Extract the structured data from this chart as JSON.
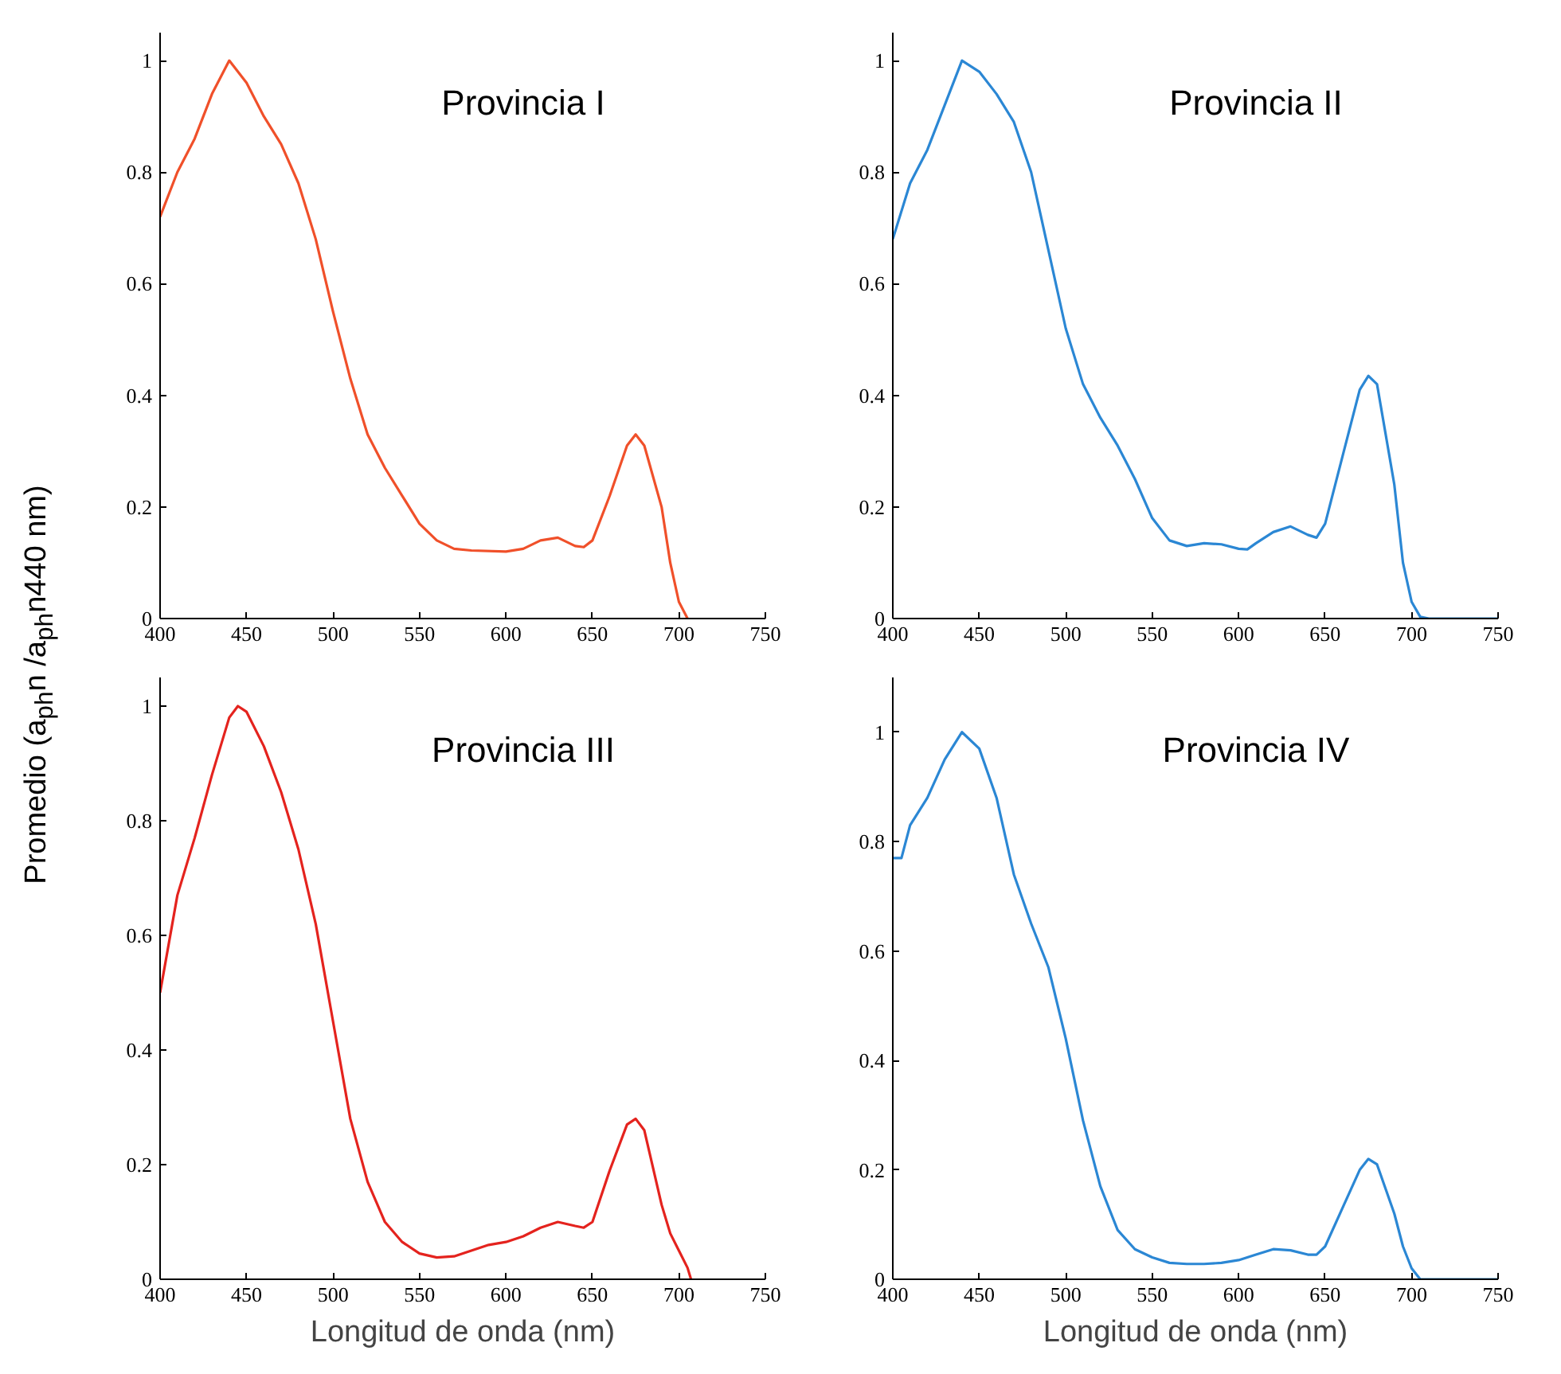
{
  "chart_data": [
    {
      "type": "line",
      "title": "Provincia I",
      "ylabel": "Promedio (a$_{ph}$n /a$_{ph}$n440 nm)",
      "xlim": [
        400,
        750
      ],
      "ylim": [
        0,
        1.05
      ],
      "xticks": [
        400,
        450,
        500,
        550,
        600,
        650,
        700,
        750
      ],
      "yticks": [
        0,
        0.2,
        0.4,
        0.6,
        0.8,
        1
      ],
      "grid": false,
      "marker": "none",
      "line_style": "solid",
      "series": [
        {
          "color": "#f0502a",
          "x": [
            400,
            410,
            420,
            430,
            440,
            450,
            460,
            470,
            480,
            490,
            500,
            510,
            520,
            530,
            540,
            550,
            560,
            570,
            580,
            600,
            610,
            620,
            630,
            640,
            645,
            650,
            660,
            670,
            675,
            680,
            690,
            695,
            700,
            705
          ],
          "values": [
            0.72,
            0.8,
            0.86,
            0.94,
            1.0,
            0.96,
            0.9,
            0.85,
            0.78,
            0.68,
            0.55,
            0.43,
            0.33,
            0.27,
            0.22,
            0.17,
            0.14,
            0.125,
            0.122,
            0.12,
            0.125,
            0.14,
            0.145,
            0.13,
            0.128,
            0.14,
            0.22,
            0.31,
            0.33,
            0.31,
            0.2,
            0.1,
            0.03,
            0
          ]
        }
      ]
    },
    {
      "type": "line",
      "title": "Provincia II",
      "xlim": [
        400,
        750
      ],
      "ylim": [
        0,
        1.05
      ],
      "xticks": [
        400,
        450,
        500,
        550,
        600,
        650,
        700,
        750
      ],
      "yticks": [
        0,
        0.2,
        0.4,
        0.6,
        0.8,
        1
      ],
      "grid": false,
      "marker": "none",
      "line_style": "solid",
      "series": [
        {
          "color": "#2b87d4",
          "x": [
            400,
            410,
            420,
            430,
            440,
            450,
            460,
            470,
            480,
            490,
            500,
            510,
            520,
            530,
            540,
            550,
            560,
            570,
            580,
            590,
            600,
            605,
            610,
            620,
            630,
            640,
            645,
            650,
            660,
            670,
            675,
            680,
            690,
            695,
            700,
            705,
            710,
            750
          ],
          "values": [
            0.68,
            0.78,
            0.84,
            0.92,
            1.0,
            0.98,
            0.94,
            0.89,
            0.8,
            0.66,
            0.52,
            0.42,
            0.36,
            0.31,
            0.25,
            0.18,
            0.14,
            0.13,
            0.135,
            0.133,
            0.125,
            0.124,
            0.135,
            0.155,
            0.165,
            0.15,
            0.145,
            0.17,
            0.29,
            0.41,
            0.435,
            0.42,
            0.24,
            0.1,
            0.03,
            0.003,
            0,
            0
          ]
        }
      ]
    },
    {
      "type": "line",
      "title": "Provincia III",
      "xlabel": "Longitud de onda (nm)",
      "xlim": [
        400,
        750
      ],
      "ylim": [
        0,
        1.05
      ],
      "xticks": [
        400,
        450,
        500,
        550,
        600,
        650,
        700,
        750
      ],
      "yticks": [
        0,
        0.2,
        0.4,
        0.6,
        0.8,
        1
      ],
      "grid": false,
      "marker": "none",
      "line_style": "solid",
      "series": [
        {
          "color": "#e4231e",
          "x": [
            400,
            410,
            420,
            430,
            440,
            445,
            450,
            460,
            470,
            480,
            490,
            500,
            510,
            520,
            530,
            540,
            550,
            560,
            570,
            580,
            590,
            600,
            610,
            620,
            630,
            640,
            645,
            650,
            660,
            670,
            675,
            680,
            690,
            695,
            700,
            705,
            707
          ],
          "values": [
            0.5,
            0.67,
            0.77,
            0.88,
            0.98,
            1.0,
            0.99,
            0.93,
            0.85,
            0.75,
            0.62,
            0.45,
            0.28,
            0.17,
            0.1,
            0.065,
            0.045,
            0.038,
            0.04,
            0.05,
            0.06,
            0.065,
            0.075,
            0.09,
            0.1,
            0.093,
            0.09,
            0.1,
            0.19,
            0.27,
            0.28,
            0.26,
            0.13,
            0.08,
            0.05,
            0.02,
            0
          ]
        }
      ]
    },
    {
      "type": "line",
      "title": "Provincia IV",
      "xlabel": "Longitud de onda (nm)",
      "xlim": [
        400,
        750
      ],
      "ylim": [
        0,
        1.1
      ],
      "xticks": [
        400,
        450,
        500,
        550,
        600,
        650,
        700,
        750
      ],
      "yticks": [
        0,
        0.2,
        0.4,
        0.6,
        0.8,
        1
      ],
      "grid": false,
      "marker": "none",
      "line_style": "solid",
      "series": [
        {
          "color": "#2b87d4",
          "x": [
            400,
            405,
            410,
            420,
            430,
            440,
            450,
            460,
            470,
            480,
            490,
            500,
            510,
            520,
            530,
            540,
            550,
            560,
            570,
            580,
            590,
            600,
            610,
            620,
            630,
            640,
            645,
            650,
            660,
            670,
            675,
            680,
            690,
            695,
            700,
            705,
            750
          ],
          "values": [
            0.77,
            0.77,
            0.83,
            0.88,
            0.95,
            1.0,
            0.97,
            0.88,
            0.74,
            0.65,
            0.57,
            0.44,
            0.29,
            0.17,
            0.09,
            0.055,
            0.04,
            0.03,
            0.028,
            0.028,
            0.03,
            0.035,
            0.045,
            0.055,
            0.053,
            0.045,
            0.045,
            0.06,
            0.13,
            0.2,
            0.22,
            0.21,
            0.12,
            0.06,
            0.02,
            0,
            0
          ]
        }
      ]
    }
  ]
}
